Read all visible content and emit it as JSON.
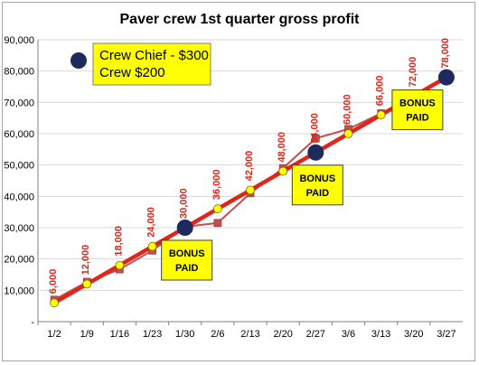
{
  "chart_data": {
    "type": "line",
    "title": "Paver crew 1st quarter gross profit",
    "xlabel": "",
    "ylabel": "",
    "categories": [
      "1/2",
      "1/9",
      "1/16",
      "1/23",
      "1/30",
      "2/6",
      "2/13",
      "2/20",
      "2/27",
      "3/6",
      "3/13",
      "3/20",
      "3/27"
    ],
    "ylim": [
      0,
      90000
    ],
    "yticks": [
      "-",
      "10,000",
      "20,000",
      "30,000",
      "40,000",
      "50,000",
      "60,000",
      "70,000",
      "80,000",
      "90,000"
    ],
    "series": [
      {
        "values": [
          6000,
          12000,
          18000,
          24000,
          30000,
          36000,
          42000,
          48000,
          54000,
          60000,
          66000,
          72000,
          78000
        ],
        "color": "#e0251b",
        "marker": "yellow-circle"
      },
      {
        "values": [
          7000,
          12700,
          16700,
          22700,
          30300,
          31500,
          41000,
          49000,
          58500,
          61500,
          66500,
          72000,
          78000
        ],
        "color": "#c0504d",
        "marker": "red-square"
      }
    ],
    "data_labels": [
      "6,000",
      "12,000",
      "18,000",
      "24,000",
      "30,000",
      "36,000",
      "42,000",
      "48,000",
      "54,000",
      "60,000",
      "66,000",
      "72,000",
      "78,000"
    ],
    "bonus_points": [
      30000,
      54000,
      78000
    ],
    "bonus_text": [
      "BONUS",
      "PAID"
    ],
    "legend": {
      "line1": "Crew Chief - $300",
      "line2": "Crew $200"
    },
    "grid": true,
    "colors": {
      "trend": "#e0251b",
      "actual": "#c0504d",
      "marker_fill": "#ffff00",
      "bonus_dot": "#1f2a5c",
      "callout_fill": "#ffff00",
      "grid": "#d9d9d9"
    }
  }
}
